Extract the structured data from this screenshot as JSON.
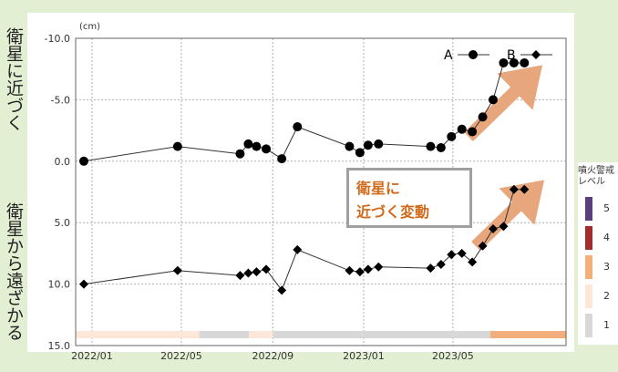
{
  "side_labels": {
    "top": "衛星に近づく",
    "bottom": "衛星から遠ざかる"
  },
  "callout": {
    "line1": "衛星に",
    "line2": "近づく変動"
  },
  "level_legend": {
    "title": "噴火警戒\nレベル",
    "levels": [
      {
        "label": "5",
        "color": "#5a3f7a"
      },
      {
        "label": "4",
        "color": "#a12d2d"
      },
      {
        "label": "3",
        "color": "#f2ae7b"
      },
      {
        "label": "2",
        "color": "#fde7d9"
      },
      {
        "label": "1",
        "color": "#d8d8d8"
      }
    ]
  },
  "colors": {
    "frame": "#e3efd3",
    "arrow": "#e8a67d",
    "series_line": "#333333"
  },
  "chart_data": {
    "type": "line",
    "unit_label": "(cm)",
    "ylim": [
      -10.0,
      15.0
    ],
    "y_inverted": true,
    "xlim": [
      "2021-12-10",
      "2023-09-30"
    ],
    "y_ticks": [
      "-10.0",
      "-5.0",
      "0.0",
      "5.0",
      "10.0",
      "15.0"
    ],
    "y_tick_values": [
      -10,
      -5,
      0,
      5,
      10,
      15
    ],
    "x_ticks": [
      "2022/01",
      "2022/05",
      "2022/09",
      "2023/01",
      "2023/05"
    ],
    "x_tick_values": [
      "2022-01-01",
      "2022-05-01",
      "2022-09-01",
      "2023-01-01",
      "2023-05-01"
    ],
    "grid": true,
    "legend_position": "top-right",
    "series": [
      {
        "name": "A",
        "marker": "circle",
        "x": [
          "2021-12-21",
          "2022-04-26",
          "2022-07-19",
          "2022-07-30",
          "2022-08-10",
          "2022-08-23",
          "2022-09-13",
          "2022-10-04",
          "2022-12-13",
          "2022-12-27",
          "2023-01-07",
          "2023-01-21",
          "2023-04-01",
          "2023-04-15",
          "2023-04-29",
          "2023-05-13",
          "2023-05-27",
          "2023-06-10",
          "2023-06-24",
          "2023-07-08",
          "2023-07-22",
          "2023-08-05"
        ],
        "y": [
          0.0,
          -1.2,
          -0.6,
          -1.4,
          -1.2,
          -1.0,
          -0.2,
          -2.8,
          -1.2,
          -0.7,
          -1.3,
          -1.4,
          -1.2,
          -1.1,
          -2.0,
          -2.6,
          -2.4,
          -3.6,
          -5.0,
          -8.0,
          -8.0,
          -8.0
        ]
      },
      {
        "name": "B",
        "marker": "diamond",
        "x": [
          "2021-12-21",
          "2022-04-26",
          "2022-07-19",
          "2022-07-30",
          "2022-08-10",
          "2022-08-23",
          "2022-09-13",
          "2022-10-04",
          "2022-12-13",
          "2022-12-27",
          "2023-01-07",
          "2023-01-21",
          "2023-04-01",
          "2023-04-15",
          "2023-04-29",
          "2023-05-13",
          "2023-05-27",
          "2023-06-10",
          "2023-06-24",
          "2023-07-08",
          "2023-07-22",
          "2023-08-05"
        ],
        "y": [
          10.0,
          8.9,
          9.3,
          9.1,
          9.0,
          8.8,
          10.5,
          7.2,
          8.9,
          9.0,
          8.8,
          8.6,
          8.7,
          8.4,
          7.6,
          7.5,
          8.2,
          6.9,
          5.5,
          5.3,
          2.3,
          2.3
        ]
      }
    ],
    "level_bar": [
      {
        "level": "2",
        "from": "2021-12-10",
        "to": "2022-05-25"
      },
      {
        "level": "1",
        "from": "2022-05-25",
        "to": "2022-07-31"
      },
      {
        "level": "2",
        "from": "2022-07-31",
        "to": "2022-09-01"
      },
      {
        "level": "1",
        "from": "2022-09-01",
        "to": "2023-06-20"
      },
      {
        "level": "3",
        "from": "2023-06-20",
        "to": "2023-09-30"
      }
    ]
  }
}
